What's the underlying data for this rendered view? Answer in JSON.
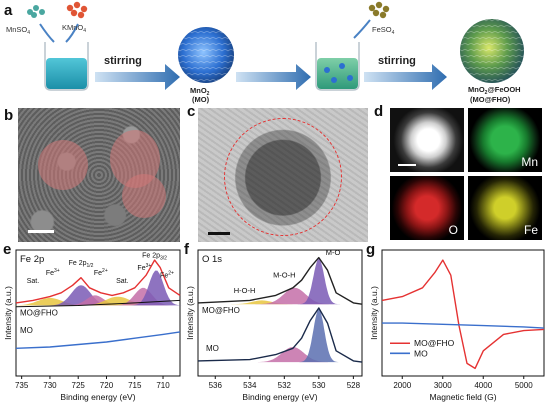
{
  "panel_labels": {
    "a": "a",
    "b": "b",
    "c": "c",
    "d": "d",
    "e": "e",
    "f": "f",
    "g": "g"
  },
  "scheme": {
    "reagent1": "MnSO",
    "reagent1_sub": "4",
    "reagent2": "KMnO",
    "reagent2_sub": "4",
    "step1": "stirring",
    "product1_line1": "MnO",
    "product1_sub": "2",
    "product1_line2": "(MO)",
    "reagent3": "FeSO",
    "reagent3_sub": "4",
    "step2": "stirring",
    "product2_line1a": "MnO",
    "product2_sub": "2",
    "product2_line1b": "@FeOOH",
    "product2_line2": "(MO@FHO)"
  },
  "colors": {
    "mn_map": "#2db34a",
    "o_map": "#d42a2a",
    "fe_map": "#cfcf2a",
    "red_line": "#e53232",
    "blue_line": "#3a6fcc",
    "purple_fill": "#7a5bb5",
    "pink_fill": "#c46fa8",
    "yellow_fill": "#e8c640",
    "navy_fill": "#5a6fb0"
  },
  "edx": {
    "mn": "Mn",
    "o": "O",
    "fe": "Fe"
  },
  "chart_data": [
    {
      "panel": "e",
      "type": "line",
      "title": "Fe 2p",
      "xlabel": "Binding energy (eV)",
      "ylabel": "Intensity (a.u.)",
      "xlim": [
        736,
        707
      ],
      "x_ticks": [
        735,
        730,
        725,
        720,
        715,
        710
      ],
      "annotations": [
        "Sat.",
        "Fe",
        "3+",
        "Fe 2p",
        "1/2",
        "Fe",
        "2+",
        "Sat.",
        "Fe",
        "3+",
        "Fe 2p",
        "3/2",
        "Fe",
        "2+"
      ],
      "series": [
        {
          "name": "MO@FHO",
          "x": [
            736,
            733,
            730,
            728,
            726,
            724.5,
            723,
            721,
            719,
            717,
            715,
            713,
            711.5,
            710.5,
            709,
            707
          ],
          "y": [
            0.58,
            0.6,
            0.63,
            0.66,
            0.72,
            0.78,
            0.7,
            0.66,
            0.64,
            0.66,
            0.7,
            0.8,
            0.92,
            0.86,
            0.7,
            0.64
          ]
        },
        {
          "name": "MO",
          "x": [
            736,
            730,
            725,
            720,
            715,
            710,
            707
          ],
          "y": [
            0.22,
            0.23,
            0.25,
            0.27,
            0.3,
            0.33,
            0.35
          ]
        }
      ]
    },
    {
      "panel": "f",
      "type": "line",
      "title": "O 1s",
      "xlabel": "Binding energy (eV)",
      "ylabel": "Intensity (a.u.)",
      "xlim": [
        537,
        527.5
      ],
      "x_ticks": [
        536,
        534,
        532,
        530,
        528
      ],
      "annotations": [
        "H-O-H",
        "M-O-H",
        "M-O"
      ],
      "series": [
        {
          "name": "MO@FHO",
          "x": [
            537,
            534,
            532.5,
            531.5,
            531,
            530.5,
            530,
            529.5,
            529,
            528,
            527.5
          ],
          "y": [
            0.58,
            0.6,
            0.64,
            0.7,
            0.76,
            0.86,
            0.94,
            0.84,
            0.66,
            0.58,
            0.57
          ]
        },
        {
          "name": "MO",
          "x": [
            537,
            534,
            532.5,
            531.5,
            531,
            530.5,
            530,
            529.5,
            529,
            528,
            527.5
          ],
          "y": [
            0.12,
            0.13,
            0.17,
            0.22,
            0.3,
            0.44,
            0.54,
            0.42,
            0.2,
            0.12,
            0.11
          ]
        }
      ]
    },
    {
      "panel": "g",
      "type": "line",
      "xlabel": "Magnetic field (G)",
      "ylabel": "Intensity (a.u.)",
      "xlim": [
        1500,
        5500
      ],
      "x_ticks": [
        2000,
        3000,
        4000,
        5000
      ],
      "legend": "bottom-left",
      "series": [
        {
          "name": "MO@FHO",
          "x": [
            1500,
            2000,
            2500,
            2800,
            3000,
            3200,
            3400,
            3600,
            3800,
            4000,
            4500,
            5000,
            5500
          ],
          "y": [
            0.6,
            0.63,
            0.7,
            0.82,
            0.92,
            0.8,
            0.4,
            0.1,
            0.06,
            0.2,
            0.33,
            0.36,
            0.37
          ]
        },
        {
          "name": "MO",
          "x": [
            1500,
            2000,
            3000,
            4000,
            5000,
            5500
          ],
          "y": [
            0.42,
            0.42,
            0.41,
            0.4,
            0.39,
            0.38
          ]
        }
      ]
    }
  ]
}
